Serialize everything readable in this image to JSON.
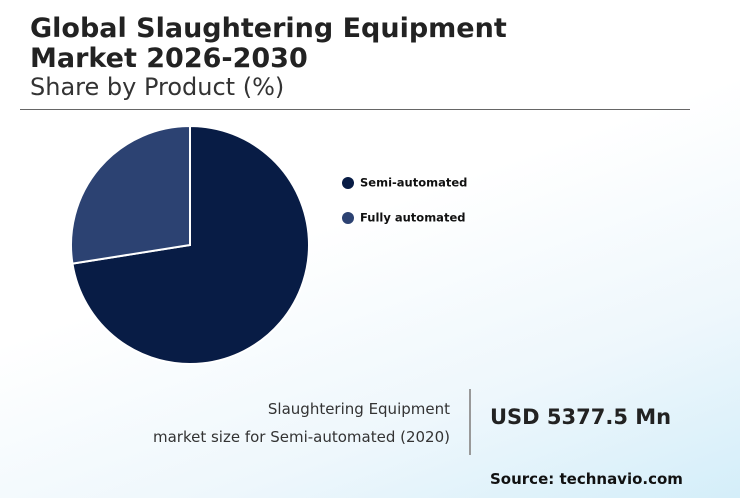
{
  "chart_data": {
    "type": "pie",
    "title": "Global Slaughtering Equipment Market 2026-2030",
    "subtitle": "Share by Product (%)",
    "categories": [
      "Semi-automated",
      "Fully automated"
    ],
    "values": [
      72.5,
      27.5
    ],
    "colors": [
      "#081c45",
      "#2c4272"
    ],
    "legend": "right"
  },
  "highlight": {
    "caption_lines": [
      "Slaughtering Equipment",
      "market size for Semi-automated (2020)"
    ],
    "value": "USD 5377.5 Mn"
  },
  "source": "Source: technavio.com"
}
